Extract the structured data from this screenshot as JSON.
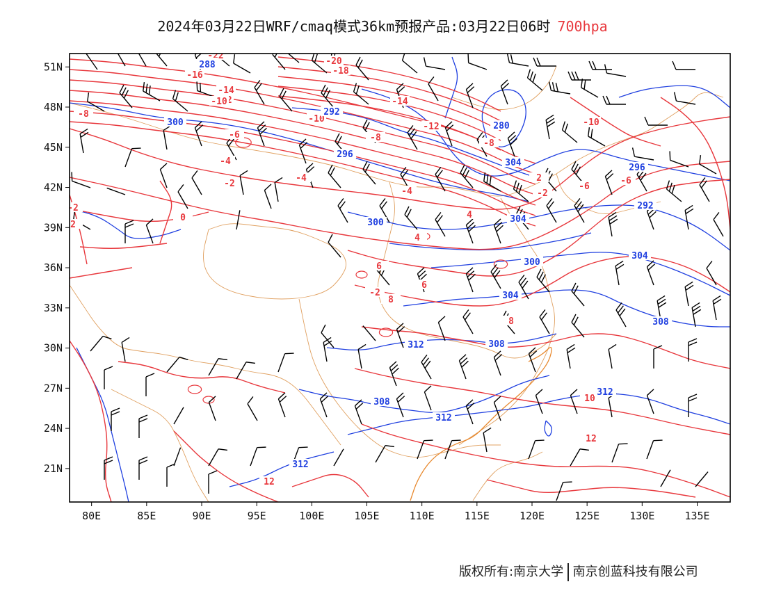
{
  "title": {
    "main": "2024年03月22日WRF/cmaq模式36km预报产品:03月22日06时",
    "level": "700hpa",
    "level_color": "#e8383d"
  },
  "map": {
    "lon_range": [
      78,
      138
    ],
    "lat_range": [
      18.5,
      52
    ],
    "lon_ticks": [
      "80E",
      "85E",
      "90E",
      "95E",
      "100E",
      "105E",
      "110E",
      "115E",
      "120E",
      "125E",
      "130E",
      "135E"
    ],
    "lat_ticks": [
      "51N",
      "48N",
      "45N",
      "42N",
      "39N",
      "36N",
      "33N",
      "30N",
      "27N",
      "24N",
      "21N"
    ],
    "colors": {
      "temperature": "#e8383d",
      "geopotential": "#2040e0",
      "boundary": "#e0a060",
      "wind": "#000000"
    },
    "temperature_labels": [
      "-22",
      "-20",
      "-18",
      "-18",
      "-16",
      "-14",
      "-14",
      "-12",
      "-12",
      "-10",
      "-10",
      "-10",
      "-8",
      "-8",
      "-8",
      "-6",
      "-6",
      "-6",
      "-4",
      "-4",
      "-4",
      "-2",
      "-2",
      "0",
      "2",
      "2",
      "-2",
      "4",
      "4",
      "6",
      "6",
      "8",
      "8",
      "10",
      "12",
      "12",
      "-2"
    ],
    "height_labels": [
      "288",
      "292",
      "296",
      "300",
      "280",
      "304",
      "296",
      "300",
      "304",
      "292",
      "300",
      "304",
      "304",
      "308",
      "308",
      "312",
      "308",
      "312",
      "312",
      "312"
    ]
  },
  "footer": {
    "owner1": "版权所有:南京大学",
    "owner2": "南京创蓝科技有限公司"
  }
}
